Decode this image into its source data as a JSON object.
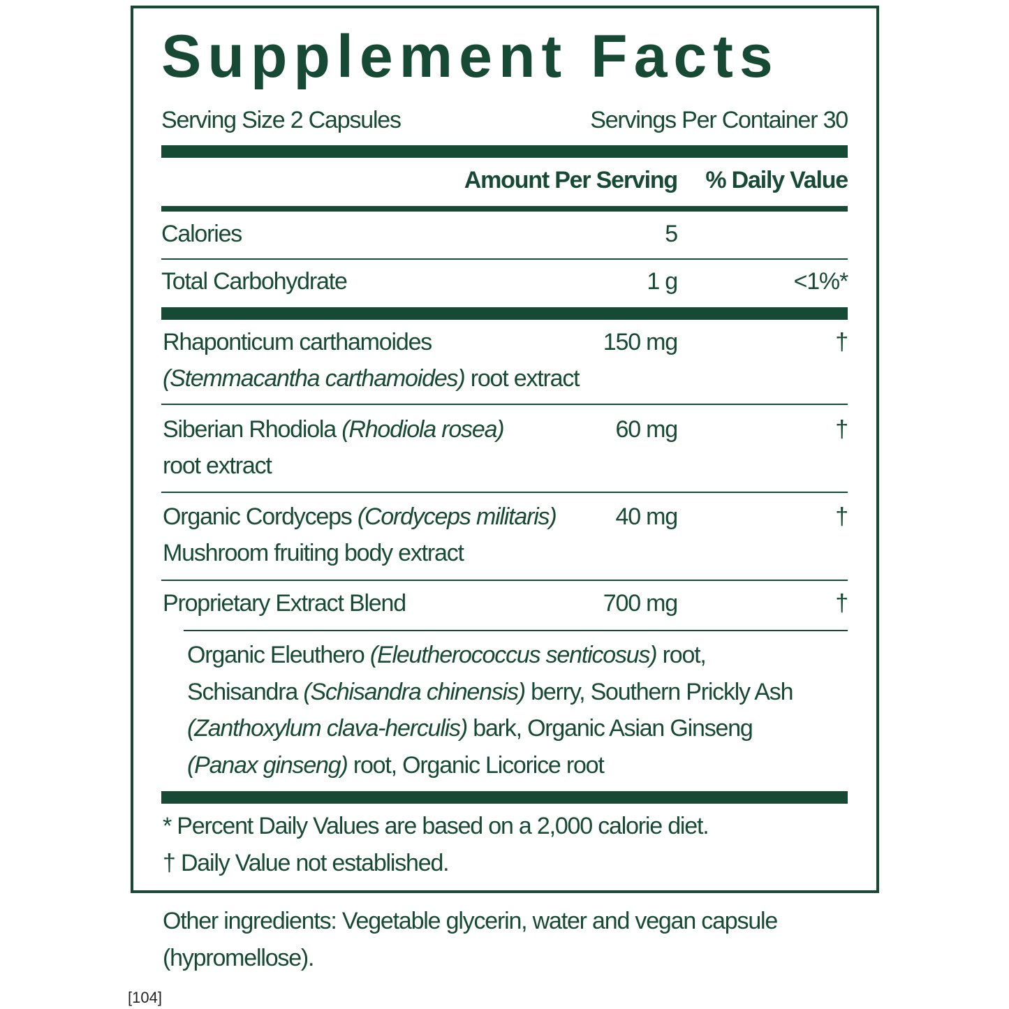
{
  "title": "Supplement Facts",
  "serving_size": "Serving Size 2 Capsules",
  "servings_per_container": "Servings Per Container 30",
  "headers": {
    "amount": "Amount Per Serving",
    "daily_value": "% Daily Value"
  },
  "nutrients": [
    {
      "name": "Calories",
      "amount": "5",
      "dv": ""
    },
    {
      "name": "Total Carbohydrate",
      "amount": "1 g",
      "dv": "<1%*"
    }
  ],
  "ingredients": [
    {
      "line1": "Rhaponticum carthamoides",
      "line1_italic": "",
      "line2_italic": "(Stemmacantha carthamoides)",
      "line2": " root extract",
      "amount": "150 mg",
      "dv": "†"
    },
    {
      "line1": "Siberian Rhodiola ",
      "line1_italic": "(Rhodiola rosea)",
      "line2_italic": "",
      "line2": "root extract",
      "amount": "60 mg",
      "dv": "†"
    },
    {
      "line1": "Organic Cordyceps ",
      "line1_italic": "(Cordyceps militaris)",
      "line2_italic": "",
      "line2": "Mushroom fruiting body extract",
      "amount": "40 mg",
      "dv": "†"
    },
    {
      "line1": "Proprietary Extract Blend",
      "line1_italic": "",
      "line2_italic": "",
      "line2": "",
      "amount": "700 mg",
      "dv": "†"
    }
  ],
  "blend": [
    [
      {
        "t": "Organic Eleuthero ",
        "i": false
      },
      {
        "t": "(Eleutherococcus senticosus)",
        "i": true
      },
      {
        "t": " root,",
        "i": false
      }
    ],
    [
      {
        "t": "Schisandra ",
        "i": false
      },
      {
        "t": "(Schisandra chinensis)",
        "i": true
      },
      {
        "t": " berry, Southern Prickly Ash",
        "i": false
      }
    ],
    [
      {
        "t": "(Zanthoxylum clava-herculis)",
        "i": true
      },
      {
        "t": " bark, Organic Asian Ginseng",
        "i": false
      }
    ],
    [
      {
        "t": "(Panax ginseng)",
        "i": true
      },
      {
        "t": " root, Organic Licorice root",
        "i": false
      }
    ]
  ],
  "footnotes": [
    "* Percent Daily Values are based on a 2,000 calorie diet.",
    "† Daily Value not established."
  ],
  "other_ingredients": [
    "Other ingredients: Vegetable glycerin, water and vegan capsule",
    "(hypromellose)."
  ],
  "code": "[104]",
  "colors": {
    "brand_green": "#174a34"
  }
}
